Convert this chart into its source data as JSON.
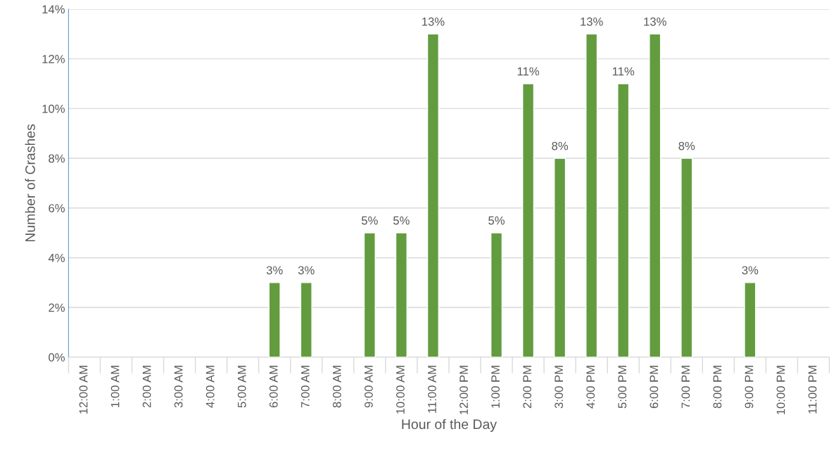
{
  "chart_data": {
    "type": "bar",
    "xlabel": "Hour of the Day",
    "ylabel": "Number of Crashes",
    "categories": [
      "12:00 AM",
      "1:00 AM",
      "2:00 AM",
      "3:00 AM",
      "4:00 AM",
      "5:00 AM",
      "6:00 AM",
      "7:00 AM",
      "8:00 AM",
      "9:00 AM",
      "10:00 AM",
      "11:00 AM",
      "12:00 PM",
      "1:00 PM",
      "2:00 PM",
      "3:00 PM",
      "4:00 PM",
      "5:00 PM",
      "6:00 PM",
      "7:00 PM",
      "8:00 PM",
      "9:00 PM",
      "10:00 PM",
      "11:00 PM"
    ],
    "values": [
      null,
      null,
      null,
      null,
      null,
      null,
      3,
      3,
      null,
      5,
      5,
      13,
      null,
      5,
      11,
      8,
      13,
      11,
      13,
      8,
      null,
      3,
      null,
      null
    ],
    "value_labels": [
      null,
      null,
      null,
      null,
      null,
      null,
      "3%",
      "3%",
      null,
      "5%",
      "5%",
      "13%",
      null,
      "5%",
      "11%",
      "8%",
      "13%",
      "11%",
      "13%",
      "8%",
      null,
      "3%",
      null,
      null
    ],
    "color": "#629c3f",
    "ylim": [
      0,
      14
    ],
    "yticks": [
      {
        "value": 0,
        "label": "0%"
      },
      {
        "value": 2,
        "label": "2%"
      },
      {
        "value": 4,
        "label": "4%"
      },
      {
        "value": 6,
        "label": "6%"
      },
      {
        "value": 8,
        "label": "8%"
      },
      {
        "value": 10,
        "label": "10%"
      },
      {
        "value": 12,
        "label": "12%"
      },
      {
        "value": 14,
        "label": "14%"
      }
    ],
    "grid": "y",
    "legend": false
  }
}
